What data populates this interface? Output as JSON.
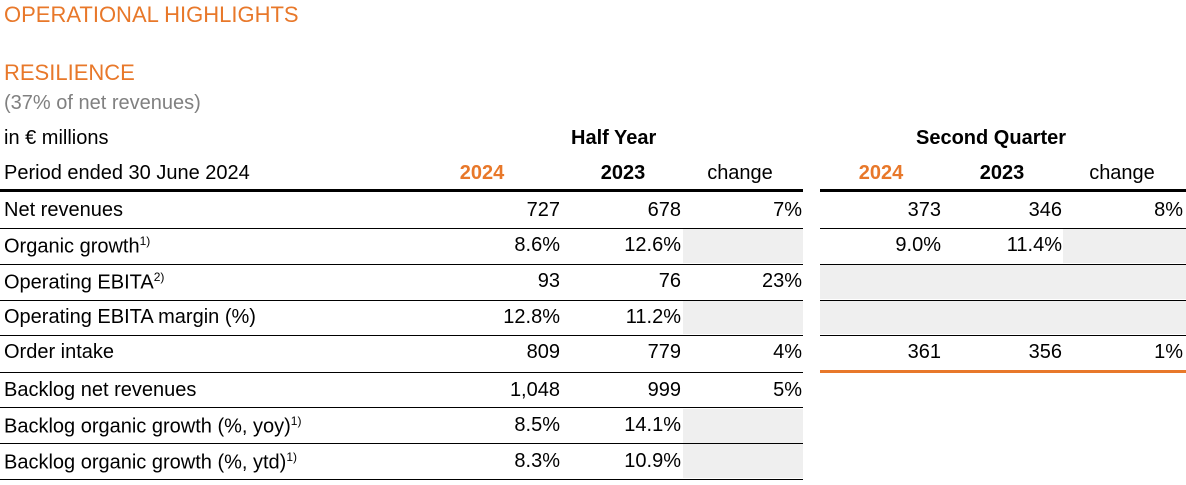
{
  "heading": "OPERATIONAL HIGHLIGHTS",
  "segment": {
    "name": "RESILIENCE",
    "share": "(37% of net revenues)"
  },
  "table": {
    "unit": "in € millions",
    "period": "Period ended 30 June 2024",
    "half_year_title": "Half Year",
    "second_quarter_title": "Second Quarter",
    "col_current": "2024",
    "col_prior": "2023",
    "col_change": "change",
    "rows": [
      {
        "label": "Net revenues",
        "sup": "",
        "hy": [
          "727",
          "678",
          "7%"
        ],
        "q2": [
          "373",
          "346",
          "8%"
        ]
      },
      {
        "label": "Organic growth",
        "sup": "1)",
        "hy": [
          "8.6%",
          "12.6%",
          ""
        ],
        "q2": [
          "9.0%",
          "11.4%",
          ""
        ]
      },
      {
        "label": "Operating EBITA",
        "sup": "2)",
        "hy": [
          "93",
          "76",
          "23%"
        ],
        "q2": [
          "",
          "",
          ""
        ]
      },
      {
        "label": "Operating EBITA margin (%)",
        "sup": "",
        "hy": [
          "12.8%",
          "11.2%",
          ""
        ],
        "q2": [
          "",
          "",
          ""
        ]
      },
      {
        "label": "Order intake",
        "sup": "",
        "hy": [
          "809",
          "779",
          "4%"
        ],
        "q2": [
          "361",
          "356",
          "1%"
        ]
      },
      {
        "label": "Backlog net revenues",
        "sup": "",
        "hy": [
          "1,048",
          "999",
          "5%"
        ]
      },
      {
        "label": "Backlog organic growth (%, yoy)",
        "sup": "1)",
        "hy": [
          "8.5%",
          "14.1%",
          ""
        ]
      },
      {
        "label": "Backlog organic growth (%, ytd)",
        "sup": "1)",
        "hy": [
          "8.3%",
          "10.9%",
          ""
        ]
      }
    ]
  }
}
